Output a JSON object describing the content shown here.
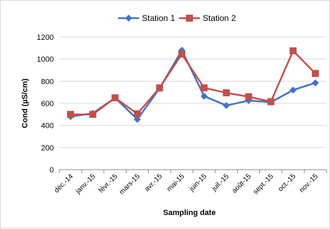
{
  "chart_data": {
    "type": "line",
    "xlabel": "Sampling date",
    "ylabel": "Cond (µS/cm)",
    "ylim": [
      0,
      1200
    ],
    "yticks": [
      0,
      200,
      400,
      600,
      800,
      1000,
      1200
    ],
    "grid": "horizontal",
    "legend_position": "top",
    "categories": [
      "déc.-14",
      "janv.-15",
      "févr.-15",
      "mars-15",
      "avr.-15",
      "mai-15",
      "juin-15",
      "juil.-15",
      "août-15",
      "sept.-15",
      "oct.-15",
      "nov.-15"
    ],
    "series": [
      {
        "name": "Station 1",
        "color": "#4472C4",
        "marker": "diamond",
        "values": [
          480,
          510,
          650,
          455,
          735,
          1080,
          665,
          580,
          625,
          610,
          720,
          785
        ]
      },
      {
        "name": "Station 2",
        "color": "#C0504D",
        "marker": "square",
        "values": [
          500,
          500,
          650,
          505,
          740,
          1045,
          740,
          695,
          660,
          615,
          1075,
          870
        ]
      }
    ]
  }
}
